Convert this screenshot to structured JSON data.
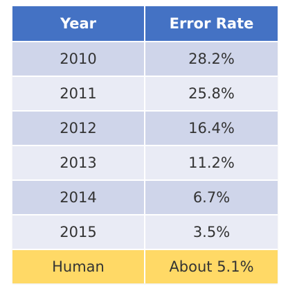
{
  "chart_data": {
    "type": "table",
    "columns": [
      "Year",
      "Error Rate"
    ],
    "rows": [
      {
        "year": "2010",
        "error_rate": "28.2%"
      },
      {
        "year": "2011",
        "error_rate": "25.8%"
      },
      {
        "year": "2012",
        "error_rate": "16.4%"
      },
      {
        "year": "2013",
        "error_rate": "11.2%"
      },
      {
        "year": "2014",
        "error_rate": "6.7%"
      },
      {
        "year": "2015",
        "error_rate": "3.5%"
      }
    ],
    "footer_row": {
      "year": "Human",
      "error_rate": "About 5.1%"
    }
  },
  "colors": {
    "header_bg": "#4472c4",
    "row_dark": "#cfd5ea",
    "row_light": "#e9ebf5",
    "footer_bg": "#ffd966",
    "divider": "#ffffff"
  }
}
